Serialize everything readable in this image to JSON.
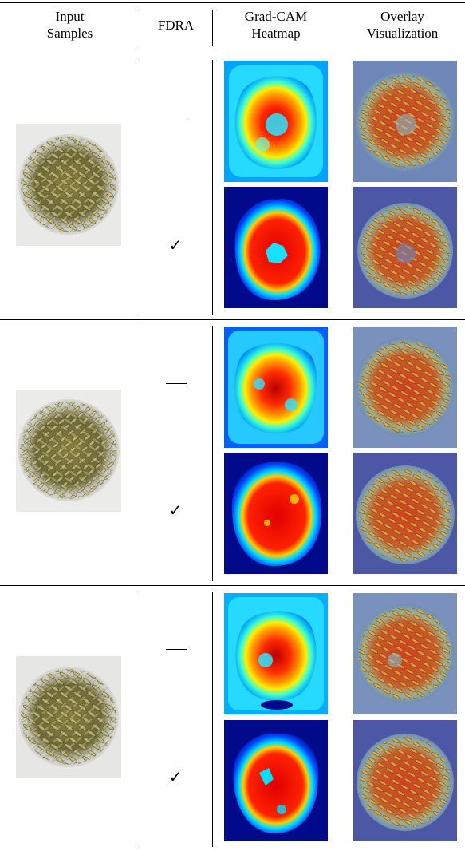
{
  "header": {
    "col1": [
      "Input",
      "Samples"
    ],
    "col2": "FDRA",
    "col3": [
      "Grad-CAM",
      "Heatmap"
    ],
    "col4": [
      "Overlay",
      "Visualization"
    ]
  },
  "marks": {
    "without": "—",
    "with": "✓"
  },
  "groups": [
    {
      "input_icon": "grain-sample-image",
      "rows": [
        {
          "fdra": "without",
          "heatmap_icon": "grad-cam-heatmap-image",
          "overlay_icon": "overlay-visualization-image"
        },
        {
          "fdra": "with",
          "heatmap_icon": "grad-cam-heatmap-image",
          "overlay_icon": "overlay-visualization-image"
        }
      ]
    },
    {
      "input_icon": "grain-sample-image",
      "rows": [
        {
          "fdra": "without",
          "heatmap_icon": "grad-cam-heatmap-image",
          "overlay_icon": "overlay-visualization-image"
        },
        {
          "fdra": "with",
          "heatmap_icon": "grad-cam-heatmap-image",
          "overlay_icon": "overlay-visualization-image"
        }
      ]
    },
    {
      "input_icon": "grain-sample-image",
      "rows": [
        {
          "fdra": "without",
          "heatmap_icon": "grad-cam-heatmap-image",
          "overlay_icon": "overlay-visualization-image"
        },
        {
          "fdra": "with",
          "heatmap_icon": "grad-cam-heatmap-image",
          "overlay_icon": "overlay-visualization-image"
        }
      ]
    }
  ]
}
